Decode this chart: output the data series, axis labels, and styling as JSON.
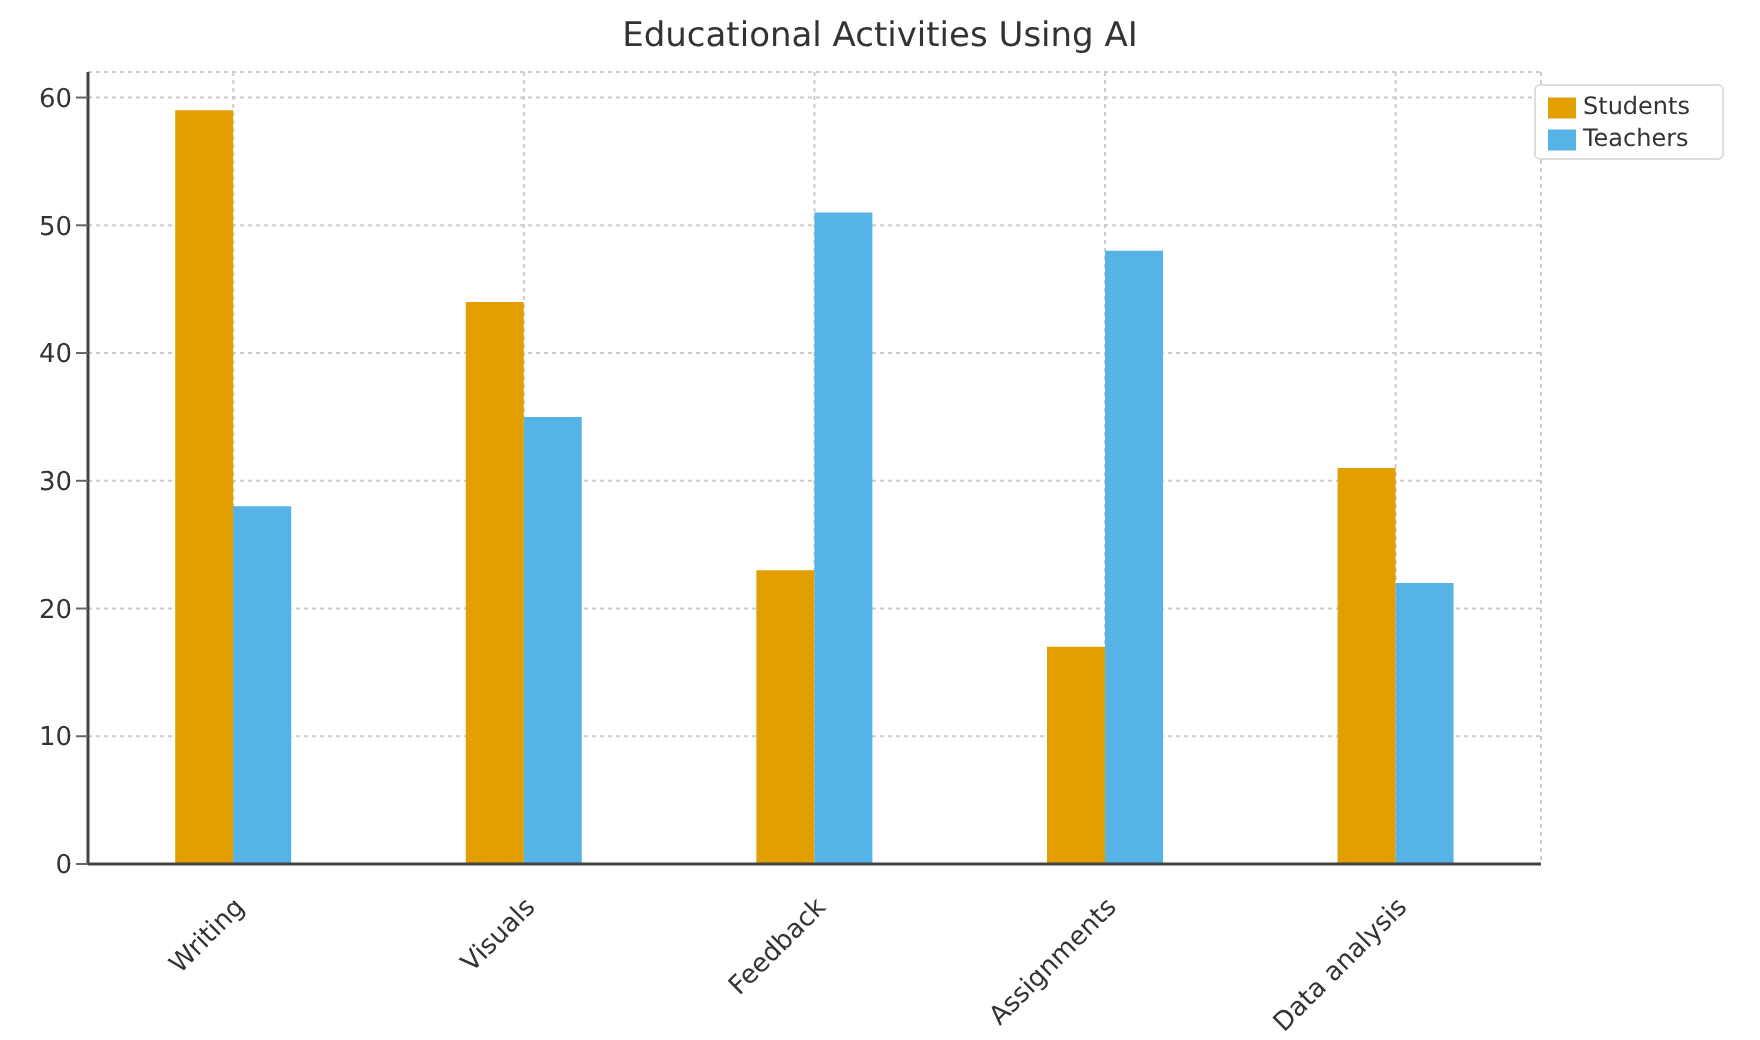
{
  "chart_data": {
    "type": "bar",
    "title": "Educational Activities Using AI",
    "categories": [
      "Writing",
      "Visuals",
      "Feedback",
      "Assignments",
      "Data analysis"
    ],
    "series": [
      {
        "name": "Students",
        "color": "#e39f00",
        "values": [
          59,
          44,
          23,
          17,
          31
        ]
      },
      {
        "name": "Teachers",
        "color": "#56b3e6",
        "values": [
          28,
          35,
          51,
          48,
          22
        ]
      }
    ],
    "ylim": [
      0,
      62
    ],
    "yticks": [
      0,
      10,
      20,
      30,
      40,
      50,
      60
    ],
    "grid": true,
    "legend": "top right"
  }
}
